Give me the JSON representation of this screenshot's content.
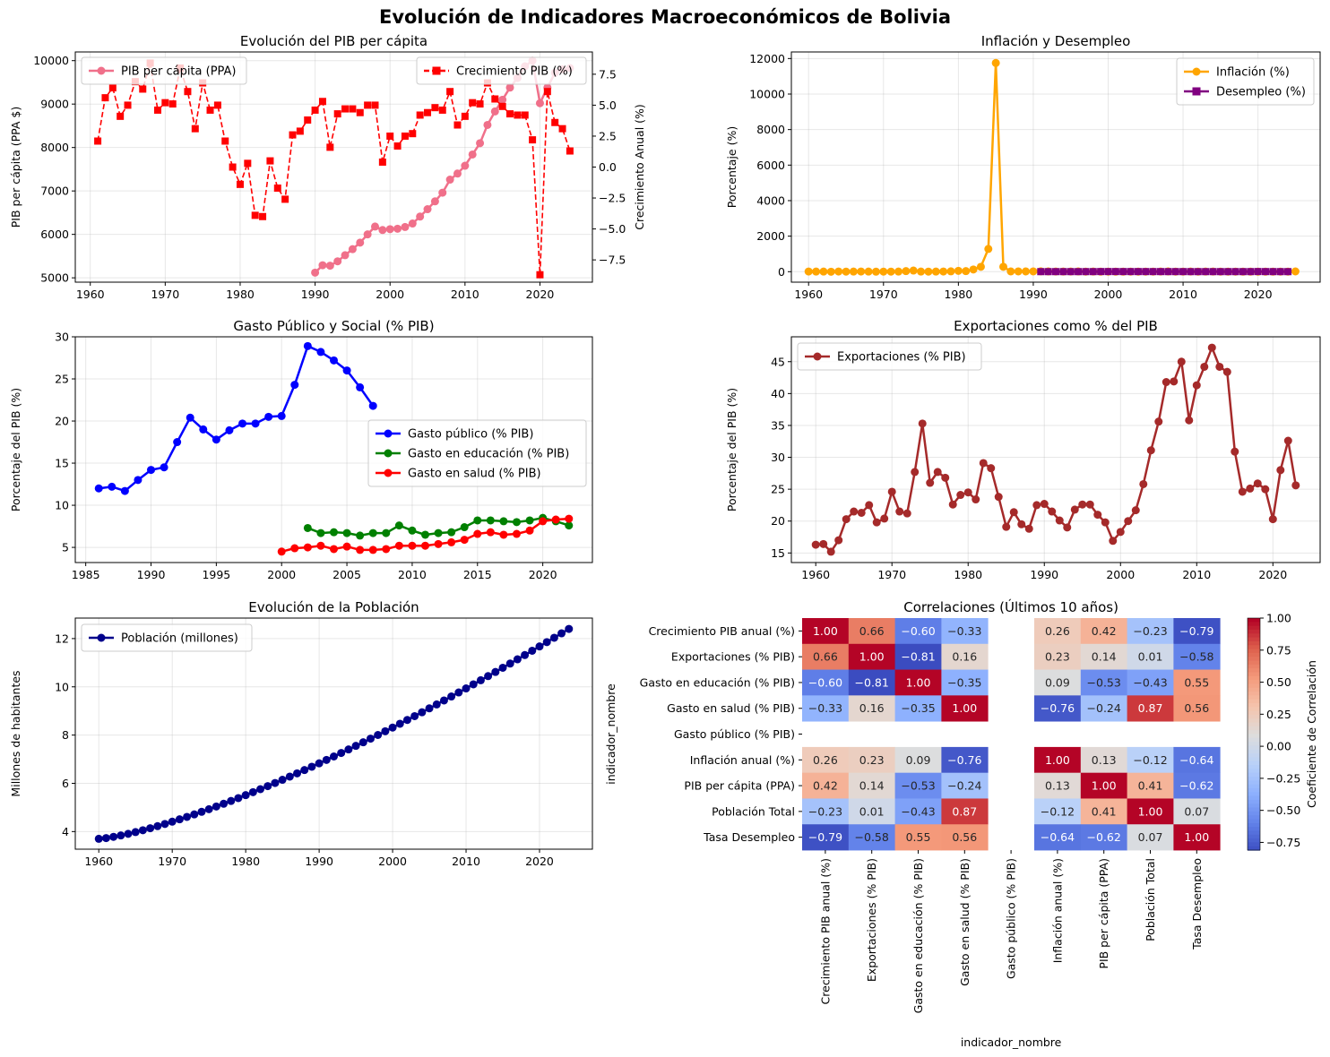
{
  "suptitle": "Evolución de Indicadores Macroeconómicos de Bolivia",
  "chart_data": [
    {
      "id": "pib",
      "type": "line",
      "title": "Evolución del PIB per cápita",
      "ylabel": "PIB per cápita (PPA $)",
      "ylabel_right": "Crecimiento Anual (%)",
      "xlim": [
        1958,
        2027
      ],
      "ylim": [
        4900,
        10200
      ],
      "ylim_right": [
        -9.3,
        9.3
      ],
      "xticks": [
        1960,
        1970,
        1980,
        1990,
        2000,
        2010,
        2020
      ],
      "yticks": [
        5000,
        6000,
        7000,
        8000,
        9000,
        10000
      ],
      "yticks_right": [
        -7.5,
        -5.0,
        -2.5,
        0.0,
        2.5,
        5.0,
        7.5
      ],
      "grid": true,
      "series": [
        {
          "name": "PIB per cápita (PPA)",
          "color": "#f0708a",
          "marker": "circle",
          "dash": false,
          "axis": "left",
          "legend": "upper-left",
          "x": [
            1990,
            1991,
            1992,
            1993,
            1994,
            1995,
            1996,
            1997,
            1998,
            1999,
            2000,
            2001,
            2002,
            2003,
            2004,
            2005,
            2006,
            2007,
            2008,
            2009,
            2010,
            2011,
            2012,
            2013,
            2014,
            2015,
            2016,
            2017,
            2018,
            2019,
            2020,
            2021,
            2022,
            2023,
            2024
          ],
          "values": [
            5120,
            5290,
            5280,
            5380,
            5520,
            5660,
            5810,
            6000,
            6180,
            6100,
            6120,
            6130,
            6170,
            6250,
            6410,
            6580,
            6760,
            6960,
            7260,
            7400,
            7580,
            7840,
            8100,
            8520,
            8830,
            9100,
            9380,
            9600,
            9870,
            10000,
            9020,
            9380,
            9720,
            9800,
            9830
          ]
        },
        {
          "name": "Crecimiento PIB (%)",
          "color": "#ff0000",
          "marker": "square",
          "dash": true,
          "axis": "right",
          "legend": "upper-right",
          "x": [
            1961,
            1962,
            1963,
            1964,
            1965,
            1966,
            1967,
            1968,
            1969,
            1970,
            1971,
            1972,
            1973,
            1974,
            1975,
            1976,
            1977,
            1978,
            1979,
            1980,
            1981,
            1982,
            1983,
            1984,
            1985,
            1986,
            1987,
            1988,
            1989,
            1990,
            1991,
            1992,
            1993,
            1994,
            1995,
            1996,
            1997,
            1998,
            1999,
            2000,
            2001,
            2002,
            2003,
            2004,
            2005,
            2006,
            2007,
            2008,
            2009,
            2010,
            2011,
            2012,
            2013,
            2014,
            2015,
            2016,
            2017,
            2018,
            2019,
            2020,
            2021,
            2022,
            2023,
            2024
          ],
          "values": [
            2.1,
            5.6,
            6.4,
            4.1,
            5.0,
            6.9,
            6.3,
            8.4,
            4.6,
            5.2,
            5.1,
            8.0,
            6.1,
            3.1,
            6.8,
            4.6,
            5.0,
            2.1,
            0.0,
            -1.4,
            0.3,
            -3.9,
            -4.0,
            0.5,
            -1.7,
            -2.6,
            2.6,
            2.9,
            3.8,
            4.6,
            5.3,
            1.6,
            4.3,
            4.7,
            4.7,
            4.4,
            5.0,
            5.0,
            0.4,
            2.5,
            1.7,
            2.5,
            2.7,
            4.2,
            4.4,
            4.8,
            4.6,
            6.1,
            3.4,
            4.1,
            5.2,
            5.1,
            6.8,
            5.5,
            4.9,
            4.3,
            4.2,
            4.2,
            2.2,
            -8.7,
            6.1,
            3.6,
            3.1,
            1.3
          ]
        }
      ]
    },
    {
      "id": "infl",
      "type": "line",
      "title": "Inflación y Desempleo",
      "ylabel": "Porcentaje (%)",
      "xlim": [
        1957.7,
        2028.3
      ],
      "ylim": [
        -590,
        12370
      ],
      "xticks": [
        1960,
        1970,
        1980,
        1990,
        2000,
        2010,
        2020
      ],
      "yticks": [
        0,
        2000,
        4000,
        6000,
        8000,
        10000,
        12000
      ],
      "grid": true,
      "legend": "upper-right",
      "series": [
        {
          "name": "Inflación (%)",
          "color": "#ffa500",
          "marker": "circle",
          "axis": "left",
          "x": [
            1960,
            1961,
            1962,
            1963,
            1964,
            1965,
            1966,
            1967,
            1968,
            1969,
            1970,
            1971,
            1972,
            1973,
            1974,
            1975,
            1976,
            1977,
            1978,
            1979,
            1980,
            1981,
            1982,
            1983,
            1984,
            1985,
            1986,
            1987,
            1988,
            1989,
            1990,
            1991,
            1992,
            1993,
            1994,
            1995,
            1996,
            1997,
            1998,
            1999,
            2000,
            2001,
            2002,
            2003,
            2004,
            2005,
            2006,
            2007,
            2008,
            2009,
            2010,
            2011,
            2012,
            2013,
            2014,
            2015,
            2016,
            2017,
            2018,
            2019,
            2020,
            2021,
            2022,
            2023,
            2024,
            2025
          ],
          "values": [
            11,
            7,
            6,
            -1,
            10,
            3,
            7,
            11,
            6,
            2,
            4,
            4,
            7,
            31,
            63,
            8,
            5,
            8,
            10,
            20,
            47,
            32,
            124,
            275,
            1281,
            11750,
            276,
            15,
            16,
            15,
            17,
            21,
            12,
            9,
            8,
            10,
            12,
            5,
            8,
            2,
            5,
            2,
            1,
            3,
            4,
            5,
            4,
            9,
            14,
            3,
            3,
            10,
            5,
            6,
            6,
            4,
            4,
            3,
            2,
            2,
            1,
            1,
            2,
            3,
            5,
            15
          ]
        },
        {
          "name": "Desempleo (%)",
          "color": "#800080",
          "marker": "square",
          "axis": "left",
          "x": [
            1991,
            1992,
            1993,
            1994,
            1995,
            1996,
            1997,
            1998,
            1999,
            2000,
            2001,
            2002,
            2003,
            2004,
            2005,
            2006,
            2007,
            2008,
            2009,
            2010,
            2011,
            2012,
            2013,
            2014,
            2015,
            2016,
            2017,
            2018,
            2019,
            2020,
            2021,
            2022,
            2023,
            2024
          ],
          "values": [
            3,
            3,
            3,
            3,
            3,
            3,
            3,
            4,
            7,
            7,
            7,
            6,
            6,
            6,
            5,
            5,
            5,
            4,
            4,
            4,
            3,
            3,
            3,
            3,
            3,
            3,
            3,
            3,
            4,
            8,
            5,
            4,
            3,
            3
          ]
        }
      ]
    },
    {
      "id": "gasto",
      "type": "line",
      "title": "Gasto Público y Social (% PIB)",
      "ylabel": "Porcentaje del PIB (%)",
      "xlim": [
        1984.2,
        2023.8
      ],
      "ylim": [
        3.2,
        30
      ],
      "xticks": [
        1985,
        1990,
        1995,
        2000,
        2005,
        2010,
        2015,
        2020
      ],
      "yticks": [
        5,
        10,
        15,
        20,
        25,
        30
      ],
      "grid": true,
      "legend": "center-right",
      "series": [
        {
          "name": "Gasto público (% PIB)",
          "color": "#0000ff",
          "marker": "circle",
          "axis": "left",
          "x": [
            1986,
            1987,
            1988,
            1989,
            1990,
            1991,
            1992,
            1993,
            1994,
            1995,
            1996,
            1997,
            1998,
            1999,
            2000,
            2001,
            2002,
            2003,
            2004,
            2005,
            2006,
            2007
          ],
          "values": [
            12.0,
            12.2,
            11.7,
            13.0,
            14.2,
            14.5,
            17.5,
            20.4,
            19.0,
            17.8,
            18.9,
            19.7,
            19.7,
            20.5,
            20.6,
            24.3,
            28.9,
            28.2,
            27.2,
            26.0,
            24.0,
            21.8
          ]
        },
        {
          "name": "Gasto en educación (% PIB)",
          "color": "#008000",
          "marker": "circle",
          "axis": "left",
          "x": [
            2002,
            2003,
            2004,
            2005,
            2006,
            2007,
            2008,
            2009,
            2010,
            2011,
            2012,
            2013,
            2014,
            2015,
            2016,
            2017,
            2018,
            2019,
            2020,
            2021,
            2022
          ],
          "values": [
            7.3,
            6.7,
            6.8,
            6.7,
            6.4,
            6.7,
            6.7,
            7.6,
            7.0,
            6.5,
            6.7,
            6.8,
            7.4,
            8.2,
            8.2,
            8.1,
            8.0,
            8.2,
            8.5,
            8.1,
            7.6
          ]
        },
        {
          "name": "Gasto en salud (% PIB)",
          "color": "#ff0000",
          "marker": "circle",
          "axis": "left",
          "x": [
            2000,
            2001,
            2002,
            2003,
            2004,
            2005,
            2006,
            2007,
            2008,
            2009,
            2010,
            2011,
            2012,
            2013,
            2014,
            2015,
            2016,
            2017,
            2018,
            2019,
            2020,
            2021,
            2022
          ],
          "values": [
            4.5,
            4.9,
            5.0,
            5.2,
            4.8,
            5.1,
            4.7,
            4.7,
            4.8,
            5.2,
            5.2,
            5.2,
            5.4,
            5.6,
            5.9,
            6.6,
            6.8,
            6.5,
            6.6,
            7.0,
            8.1,
            8.3,
            8.4
          ]
        }
      ]
    },
    {
      "id": "export",
      "type": "line",
      "title": "Exportaciones como % del PIB",
      "ylabel": "Porcentaje del PIB (%)",
      "xlim": [
        1956.8,
        2026.2
      ],
      "ylim": [
        13.5,
        48.9
      ],
      "xticks": [
        1960,
        1970,
        1980,
        1990,
        2000,
        2010,
        2020
      ],
      "yticks": [
        15,
        20,
        25,
        30,
        35,
        40,
        45
      ],
      "grid": true,
      "legend": "upper-left",
      "series": [
        {
          "name": "Exportaciones (% PIB)",
          "color": "#a52a2a",
          "marker": "circle",
          "axis": "left",
          "x": [
            1960,
            1961,
            1962,
            1963,
            1964,
            1965,
            1966,
            1967,
            1968,
            1969,
            1970,
            1971,
            1972,
            1973,
            1974,
            1975,
            1976,
            1977,
            1978,
            1979,
            1980,
            1981,
            1982,
            1983,
            1984,
            1985,
            1986,
            1987,
            1988,
            1989,
            1990,
            1991,
            1992,
            1993,
            1994,
            1995,
            1996,
            1997,
            1998,
            1999,
            2000,
            2001,
            2002,
            2003,
            2004,
            2005,
            2006,
            2007,
            2008,
            2009,
            2010,
            2011,
            2012,
            2013,
            2014,
            2015,
            2016,
            2017,
            2018,
            2019,
            2020,
            2021,
            2022,
            2023
          ],
          "values": [
            16.3,
            16.4,
            15.2,
            17.0,
            20.3,
            21.5,
            21.3,
            22.5,
            19.8,
            20.4,
            24.6,
            21.5,
            21.2,
            27.7,
            35.3,
            26.0,
            27.7,
            26.8,
            22.6,
            24.1,
            24.5,
            23.4,
            29.1,
            28.3,
            23.8,
            19.1,
            21.4,
            19.5,
            18.8,
            22.5,
            22.7,
            21.5,
            20.1,
            19.0,
            21.8,
            22.6,
            22.6,
            21.0,
            19.8,
            16.9,
            18.3,
            20.0,
            21.7,
            25.8,
            31.1,
            35.6,
            41.8,
            41.9,
            45.0,
            35.8,
            41.3,
            44.2,
            47.2,
            44.2,
            43.4,
            30.9,
            24.6,
            25.1,
            25.9,
            25.0,
            20.3,
            28.0,
            32.6,
            25.6
          ]
        }
      ]
    },
    {
      "id": "pob",
      "type": "line",
      "title": "Evolución de la Población",
      "ylabel": "Millones de habitantes",
      "xlim": [
        1956.8,
        2027.2
      ],
      "ylim": [
        3.27,
        12.85
      ],
      "xticks": [
        1960,
        1970,
        1980,
        1990,
        2000,
        2010,
        2020
      ],
      "yticks": [
        4,
        6,
        8,
        10,
        12
      ],
      "grid": true,
      "legend": "upper-left",
      "series": [
        {
          "name": "Población (millones)",
          "color": "#00008b",
          "marker": "circle",
          "axis": "left",
          "x_start": 1960,
          "x_end": 2024,
          "y_start": 3.7,
          "y_end": 12.4,
          "curve": 1.35
        }
      ]
    },
    {
      "id": "corr",
      "type": "heatmap",
      "title": "Correlaciones (Últimos 10 años)",
      "xlabel": "indicador_nombre",
      "ylabel": "indicador_nombre",
      "colorbar_label": "Coeficiente de Correlación",
      "colorbar_ticks": [
        1.0,
        0.75,
        0.5,
        0.25,
        0.0,
        -0.25,
        -0.5,
        -0.75
      ],
      "colorbar_ticklabels": [
        "1.00",
        "0.75",
        "0.50",
        "0.25",
        "0.00",
        "−0.25",
        "−0.50",
        "−0.75"
      ],
      "vmin": -0.81,
      "vmax": 1.0,
      "labels": [
        "Crecimiento PIB anual (%)",
        "Exportaciones (% PIB)",
        "Gasto en educación (% PIB)",
        "Gasto en salud (% PIB)",
        "Gasto público (% PIB)",
        "Inflación anual (%)",
        "PIB per cápita (PPA)",
        "Población Total",
        "Tasa Desempleo"
      ],
      "matrix": [
        [
          1.0,
          0.66,
          -0.6,
          -0.33,
          null,
          0.26,
          0.42,
          -0.23,
          -0.79
        ],
        [
          0.66,
          1.0,
          -0.81,
          0.16,
          null,
          0.23,
          0.14,
          0.01,
          -0.58
        ],
        [
          -0.6,
          -0.81,
          1.0,
          -0.35,
          null,
          0.09,
          -0.53,
          -0.43,
          0.55
        ],
        [
          -0.33,
          0.16,
          -0.35,
          1.0,
          null,
          -0.76,
          -0.24,
          0.87,
          0.56
        ],
        [
          null,
          null,
          null,
          null,
          null,
          null,
          null,
          null,
          null
        ],
        [
          0.26,
          0.23,
          0.09,
          -0.76,
          null,
          1.0,
          0.13,
          -0.12,
          -0.64
        ],
        [
          0.42,
          0.14,
          -0.53,
          -0.24,
          null,
          0.13,
          1.0,
          0.41,
          -0.62
        ],
        [
          -0.23,
          0.01,
          -0.43,
          0.87,
          null,
          -0.12,
          0.41,
          1.0,
          0.07
        ],
        [
          -0.79,
          -0.58,
          0.55,
          0.56,
          null,
          -0.64,
          -0.62,
          0.07,
          1.0
        ]
      ]
    }
  ]
}
